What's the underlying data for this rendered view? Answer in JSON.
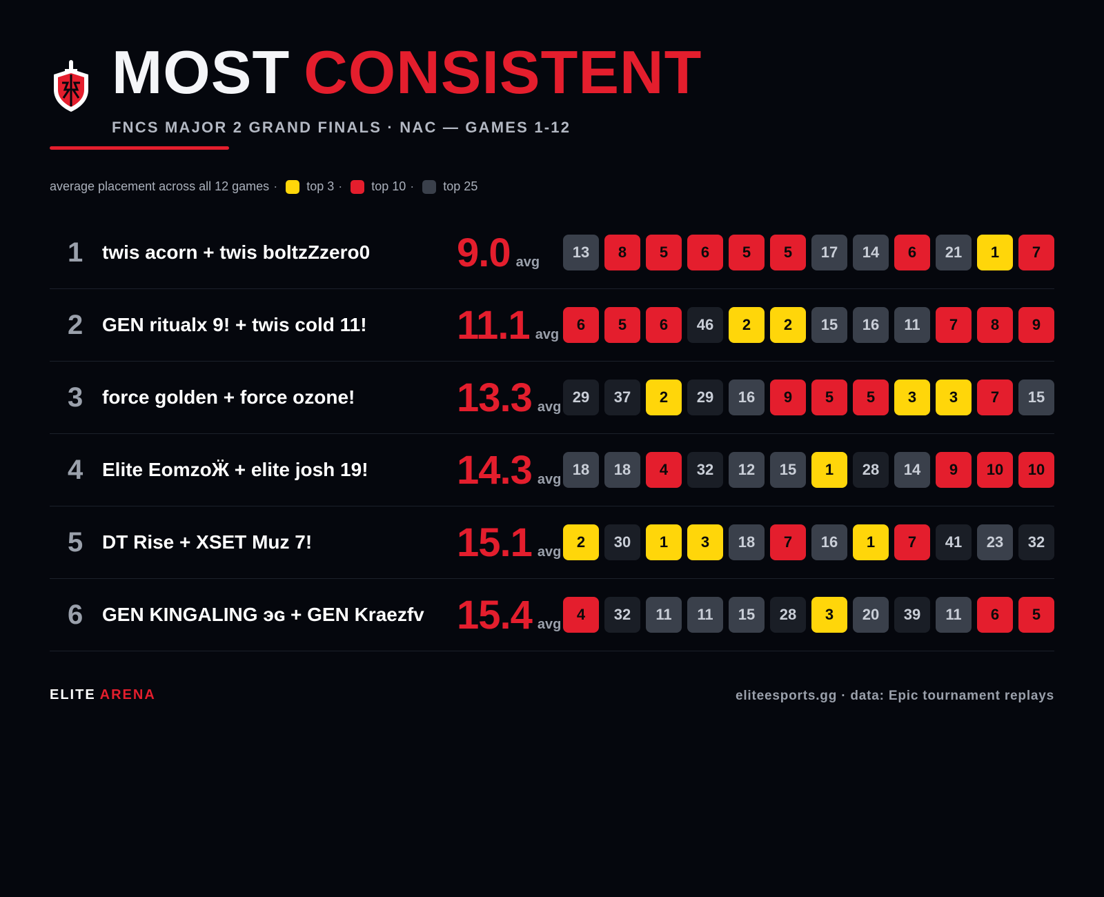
{
  "header": {
    "title_part1": "MOST",
    "title_part2": "CONSISTENT",
    "subtitle": "FNCS MAJOR 2 GRAND FINALS · NAC — GAMES 1-12",
    "logo_icon": "shield-sword-logo-icon"
  },
  "legend": {
    "intro": "average placement across all 12 games",
    "sep": "·",
    "items": [
      {
        "label": "top 3",
        "color": "#ffd60a"
      },
      {
        "label": "top 10",
        "color": "#e41e2d"
      },
      {
        "label": "top 25",
        "color": "#3a404b"
      }
    ]
  },
  "avg_label": "avg",
  "colors": {
    "accent": "#e41e2d",
    "top3": "#ffd60a",
    "top10": "#e41e2d",
    "top25": "#3a404b",
    "outside": "#1a1e26",
    "background": "#05070d"
  },
  "rows": [
    {
      "rank": "1",
      "team": "twis acorn + twis boltzZzero0",
      "avg": "9.0",
      "placements": [
        13,
        8,
        5,
        6,
        5,
        5,
        17,
        14,
        6,
        21,
        1,
        7
      ]
    },
    {
      "rank": "2",
      "team": "GEN ritualx 9! + twis cold 11!",
      "avg": "11.1",
      "placements": [
        6,
        5,
        6,
        46,
        2,
        2,
        15,
        16,
        11,
        7,
        8,
        9
      ]
    },
    {
      "rank": "3",
      "team": "force golden + force ozone!",
      "avg": "13.3",
      "placements": [
        29,
        37,
        2,
        29,
        16,
        9,
        5,
        5,
        3,
        3,
        7,
        15
      ]
    },
    {
      "rank": "4",
      "team": "Elite EomzoӜ + elite josh 19!",
      "avg": "14.3",
      "placements": [
        18,
        18,
        4,
        32,
        12,
        15,
        1,
        28,
        14,
        9,
        10,
        10
      ]
    },
    {
      "rank": "5",
      "team": "DT Rise + XSET Muz 7!",
      "avg": "15.1",
      "placements": [
        2,
        30,
        1,
        3,
        18,
        7,
        16,
        1,
        7,
        41,
        23,
        32
      ]
    },
    {
      "rank": "6",
      "team": "GEN KINGALING эɢ + GEN Kraezfv",
      "avg": "15.4",
      "placements": [
        4,
        32,
        11,
        11,
        15,
        28,
        3,
        20,
        39,
        11,
        6,
        5
      ]
    }
  ],
  "footer": {
    "brand_part1": "ELITE",
    "brand_part2": "ARENA",
    "credit": "eliteesports.gg · data: Epic tournament replays"
  }
}
